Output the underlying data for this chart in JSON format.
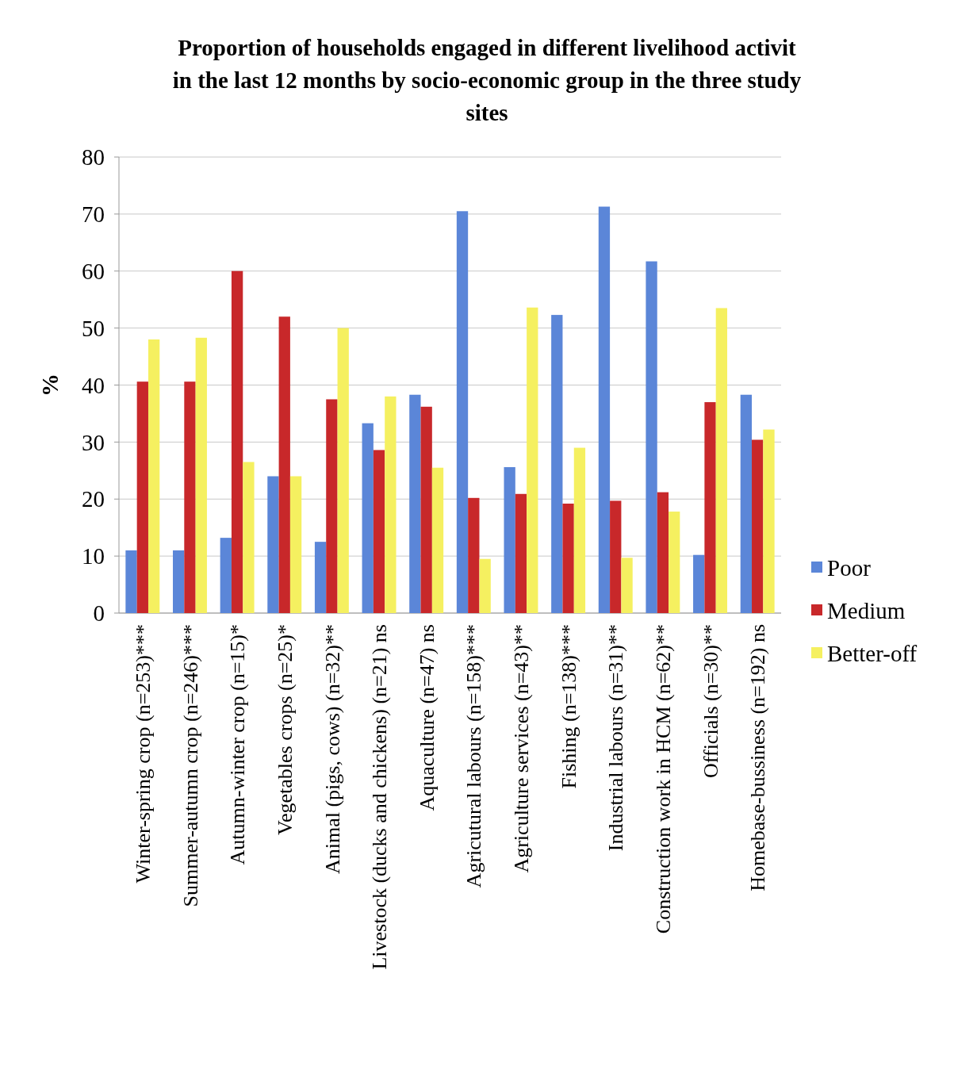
{
  "chart_data": {
    "type": "bar",
    "title": "Proportion of households engaged in different livelihood activit in the last 12 months by socio-economic group in the three study sites",
    "ylabel": "%",
    "categories": [
      "Winter-spring crop (n=253)***",
      "Summer-autumn crop (n=246)***",
      "Autumn-winter crop (n=15)*",
      "Vegetables crops (n=25)*",
      "Animal (pigs, cows) (n=32)**",
      "Livestock (ducks and chickens) (n=21) ns",
      "Aquaculture (n=47) ns",
      "Agricutural labours (n=158)***",
      "Agriculture services (n=43)**",
      "Fishing (n=138)***",
      "Industrial labours (n=31)**",
      "Construction work in HCM (n=62)**",
      "Officials (n=30)**",
      "Homebase-bussiness (n=192) ns"
    ],
    "series": [
      {
        "name": "Poor",
        "color": "#5b86d8",
        "values": [
          11,
          11,
          13.2,
          24,
          12.5,
          33.3,
          38.3,
          70.5,
          25.6,
          52.3,
          71.3,
          61.7,
          10.2,
          38.3
        ]
      },
      {
        "name": "Medium",
        "color": "#c8282a",
        "values": [
          40.6,
          40.6,
          60,
          52,
          37.5,
          28.6,
          36.2,
          20.2,
          20.9,
          19.2,
          19.7,
          21.2,
          37,
          30.4
        ]
      },
      {
        "name": "Better-off",
        "color": "#f5f060",
        "values": [
          48,
          48.3,
          26.5,
          24,
          50,
          38,
          25.5,
          9.5,
          53.6,
          29,
          9.7,
          17.8,
          53.5,
          32.2
        ]
      }
    ],
    "ylim": [
      0,
      80
    ],
    "yticks": [
      0,
      10,
      20,
      30,
      40,
      50,
      60,
      70,
      80
    ],
    "grid": "y",
    "legend": "right"
  }
}
